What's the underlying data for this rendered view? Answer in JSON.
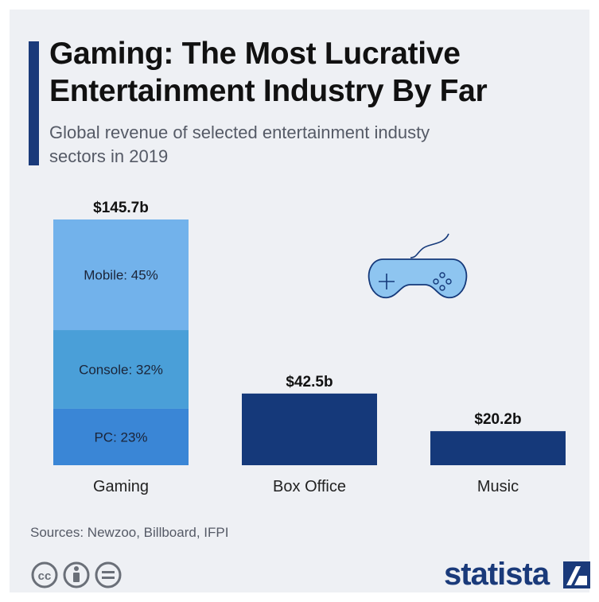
{
  "title": "Gaming: The Most Lucrative Entertainment Industry By Far",
  "subtitle": "Global revenue of selected entertainment industy sectors in 2019",
  "source": "Sources: Newzoo, Billboard, IFPI",
  "brand": "statista",
  "icons": [
    "controller-icon",
    "cc-icon",
    "attribution-icon",
    "no-derivatives-icon",
    "statista-logo-icon"
  ],
  "colors": {
    "mobile": "#72b2eb",
    "console": "#4a9fd8",
    "pc": "#3a86d6",
    "dark": "#15397a",
    "brand": "#1a3a7a"
  },
  "chart_data": {
    "type": "bar",
    "categories": [
      "Gaming",
      "Box Office",
      "Music"
    ],
    "values": [
      145.7,
      42.5,
      20.2
    ],
    "value_labels": [
      "$145.7b",
      "$42.5b",
      "$20.2b"
    ],
    "unit": "billion USD",
    "ylim": [
      0,
      145.7
    ],
    "grid": false,
    "stacked_segments": {
      "Gaming": [
        {
          "label": "Mobile: 45%",
          "share": 0.45,
          "color": "#72b2eb"
        },
        {
          "label": "Console: 32%",
          "share": 0.32,
          "color": "#4a9fd8"
        },
        {
          "label": "PC: 23%",
          "share": 0.23,
          "color": "#3a86d6"
        }
      ]
    }
  }
}
